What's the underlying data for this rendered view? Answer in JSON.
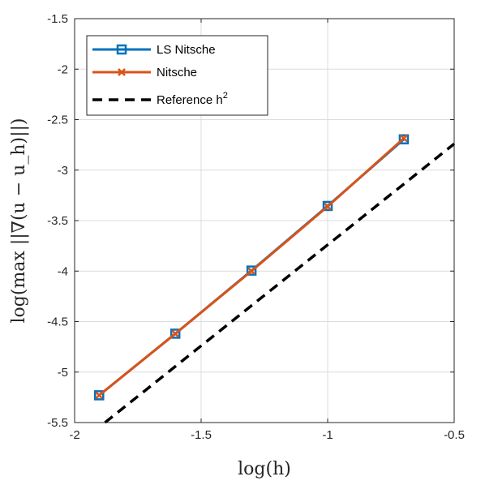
{
  "chart_data": {
    "type": "line",
    "xlabel": "log(h)",
    "ylabel": "log(max ||∇(u − u_h)||)",
    "xlim": [
      -2,
      -0.5
    ],
    "ylim": [
      -5.5,
      -1.5
    ],
    "xticks": [
      "-2",
      "-1.5",
      "-1",
      "-0.5"
    ],
    "yticks": [
      "-1.5",
      "-2",
      "-2.5",
      "-3",
      "-3.5",
      "-4",
      "-4.5",
      "-5",
      "-5.5"
    ],
    "grid": true,
    "legend_position": "top-left",
    "series": [
      {
        "name": "LS Nitsche",
        "color": "#0072BD",
        "marker": "square",
        "x": [
          -1.903,
          -1.602,
          -1.301,
          -1.0,
          -0.699
        ],
        "y": [
          -5.23,
          -4.62,
          -3.995,
          -3.355,
          -2.695
        ]
      },
      {
        "name": "Nitsche",
        "color": "#D95319",
        "marker": "x",
        "x": [
          -1.903,
          -1.602,
          -1.301,
          -1.0,
          -0.699
        ],
        "y": [
          -5.23,
          -4.62,
          -4.0,
          -3.36,
          -2.685
        ]
      },
      {
        "name": "Reference h",
        "name_superscript": "2",
        "color": "#000000",
        "dash": true,
        "x": [
          -1.88,
          -0.5
        ],
        "y": [
          -5.5,
          -2.74
        ]
      }
    ]
  }
}
